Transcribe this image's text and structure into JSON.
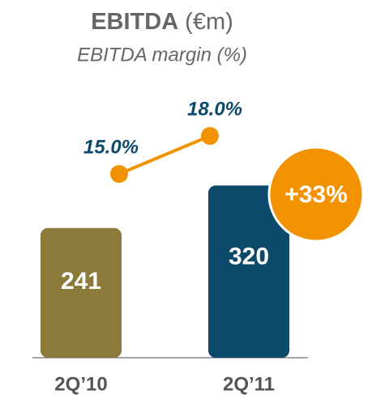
{
  "chart_data": {
    "type": "bar",
    "title": "EBITDA",
    "title_unit": "(€m)",
    "subtitle": "EBITDA margin (%)",
    "categories": [
      "2Q’10",
      "2Q’11"
    ],
    "values": [
      241,
      320
    ],
    "colors": [
      "#8c7a3a",
      "#0c4a6b"
    ],
    "line": {
      "values": [
        15.0,
        18.0
      ],
      "value_labels": [
        "15.0%",
        "18.0%"
      ],
      "color": "#f39200"
    },
    "annotation": {
      "text": "+33%",
      "color": "#f39200"
    }
  }
}
